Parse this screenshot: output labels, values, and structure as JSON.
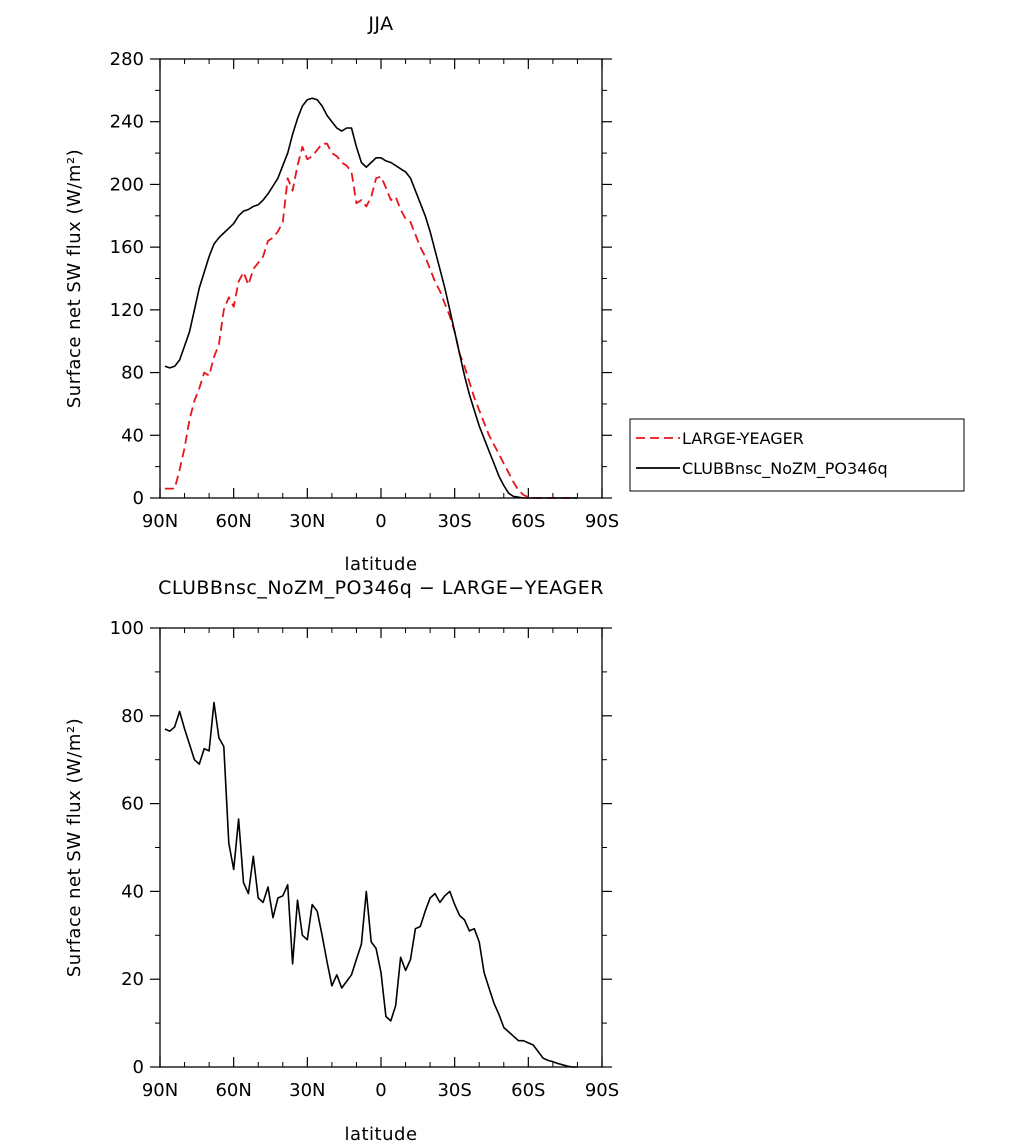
{
  "chart_data": [
    {
      "type": "line",
      "title": "JJA",
      "xlabel": "latitude",
      "ylabel": "Surface net SW flux (W/m²)",
      "x_ticks": [
        "90N",
        "60N",
        "30N",
        "0",
        "30S",
        "60S",
        "90S"
      ],
      "x_tick_values": [
        90,
        60,
        30,
        0,
        -30,
        -60,
        -90
      ],
      "xlim": [
        90,
        -90
      ],
      "y_ticks": [
        "0",
        "40",
        "80",
        "120",
        "160",
        "200",
        "240",
        "280"
      ],
      "ylim": [
        0,
        280
      ],
      "legend_position": "right",
      "series": [
        {
          "name": "LARGE-YEAGER",
          "color": "#e8141b",
          "dash": "dashed",
          "x": [
            88,
            86,
            84,
            82,
            80,
            78,
            76,
            74,
            72,
            70,
            68,
            66,
            64,
            62,
            60,
            58,
            56,
            54,
            52,
            50,
            48,
            46,
            44,
            42,
            40,
            38,
            36,
            34,
            32,
            30,
            28,
            26,
            24,
            22,
            20,
            18,
            16,
            14,
            12,
            10,
            8,
            6,
            4,
            2,
            0,
            -2,
            -4,
            -6,
            -8,
            -10,
            -12,
            -14,
            -16,
            -18,
            -20,
            -22,
            -24,
            -26,
            -28,
            -30,
            -32,
            -34,
            -36,
            -38,
            -40,
            -42,
            -44,
            -46,
            -48,
            -50,
            -52,
            -54,
            -56,
            -58,
            -60,
            -62,
            -64,
            -66,
            -68,
            -70,
            -72,
            -74,
            -76,
            -78,
            -80
          ],
          "values": [
            6,
            6,
            6,
            18,
            32,
            50,
            62,
            70,
            80,
            78,
            90,
            98,
            120,
            128,
            122,
            138,
            144,
            136,
            146,
            150,
            154,
            164,
            166,
            170,
            176,
            204,
            196,
            212,
            224,
            216,
            218,
            222,
            226,
            226,
            220,
            218,
            214,
            212,
            208,
            188,
            190,
            186,
            192,
            204,
            205,
            198,
            190,
            192,
            184,
            178,
            176,
            168,
            160,
            154,
            146,
            138,
            132,
            124,
            116,
            106,
            92,
            84,
            74,
            64,
            56,
            48,
            40,
            34,
            28,
            22,
            16,
            10,
            5,
            2,
            0.5,
            0,
            0,
            0,
            0,
            0,
            0,
            0,
            0,
            0,
            0
          ]
        },
        {
          "name": "CLUBBnsc_NoZM_PO346q",
          "color": "#000000",
          "dash": "solid",
          "x": [
            88,
            86,
            84,
            82,
            80,
            78,
            76,
            74,
            72,
            70,
            68,
            66,
            64,
            62,
            60,
            58,
            56,
            54,
            52,
            50,
            48,
            46,
            44,
            42,
            40,
            38,
            36,
            34,
            32,
            30,
            28,
            26,
            24,
            22,
            20,
            18,
            16,
            14,
            12,
            10,
            8,
            6,
            4,
            2,
            0,
            -2,
            -4,
            -6,
            -8,
            -10,
            -12,
            -14,
            -16,
            -18,
            -20,
            -22,
            -24,
            -26,
            -28,
            -30,
            -32,
            -34,
            -36,
            -38,
            -40,
            -42,
            -44,
            -46,
            -48,
            -50,
            -52,
            -54,
            -56,
            -58,
            -60,
            -62,
            -64,
            -66,
            -68,
            -70,
            -72,
            -74,
            -76,
            -78,
            -80
          ],
          "values": [
            84,
            83,
            84,
            88,
            97,
            106,
            120,
            134,
            144,
            154,
            162,
            166,
            169,
            172,
            175,
            180,
            183,
            184,
            186,
            187,
            190,
            194,
            199,
            204,
            212,
            220,
            232,
            242,
            250,
            254,
            255,
            254,
            250,
            244,
            240,
            236,
            234,
            236,
            236,
            224,
            214,
            211,
            214,
            217,
            217,
            215,
            214,
            212,
            210,
            208,
            204,
            196,
            188,
            180,
            170,
            158,
            146,
            134,
            120,
            106,
            92,
            78,
            66,
            56,
            46,
            38,
            30,
            22,
            14,
            8,
            3,
            1,
            0.5,
            0,
            0,
            0,
            0,
            0,
            0,
            0,
            0,
            0,
            0,
            0,
            0
          ]
        }
      ]
    },
    {
      "type": "line",
      "title": "CLUBBnsc_NoZM_PO346q − LARGE−YEAGER",
      "xlabel": "latitude",
      "ylabel": "Surface net SW flux (W/m²)",
      "x_ticks": [
        "90N",
        "60N",
        "30N",
        "0",
        "30S",
        "60S",
        "90S"
      ],
      "x_tick_values": [
        90,
        60,
        30,
        0,
        -30,
        -60,
        -90
      ],
      "xlim": [
        90,
        -90
      ],
      "y_ticks": [
        "0",
        "20",
        "40",
        "60",
        "80",
        "100"
      ],
      "ylim": [
        0,
        100
      ],
      "series": [
        {
          "color": "#000000",
          "dash": "solid",
          "x": [
            88,
            86,
            84,
            82,
            80,
            78,
            76,
            74,
            72,
            70,
            68,
            66,
            64,
            62,
            60,
            58,
            56,
            54,
            52,
            50,
            48,
            46,
            44,
            42,
            40,
            38,
            36,
            34,
            32,
            30,
            28,
            26,
            24,
            22,
            20,
            18,
            16,
            14,
            12,
            10,
            8,
            6,
            4,
            2,
            0,
            -2,
            -4,
            -6,
            -8,
            -10,
            -12,
            -14,
            -16,
            -18,
            -20,
            -22,
            -24,
            -26,
            -28,
            -30,
            -32,
            -34,
            -36,
            -38,
            -40,
            -42,
            -44,
            -46,
            -48,
            -50,
            -52,
            -54,
            -56,
            -58,
            -60,
            -62,
            -64,
            -66,
            -68,
            -70,
            -72,
            -74,
            -76,
            -78,
            -80
          ],
          "values": [
            77,
            76.5,
            77.5,
            81,
            77,
            73.5,
            70,
            69,
            72.5,
            72,
            83,
            75,
            73,
            51,
            45,
            56.5,
            42,
            39.5,
            48,
            38.5,
            37.5,
            41,
            34,
            38.5,
            39,
            41.5,
            23.5,
            38,
            30,
            29,
            37,
            35.5,
            30,
            24,
            18.5,
            21,
            18,
            19.5,
            21,
            24.5,
            28,
            40,
            28.5,
            27,
            21.5,
            11.5,
            10.5,
            14,
            25,
            22,
            24.5,
            31.5,
            32,
            35.5,
            38.5,
            39.5,
            37.5,
            39,
            40,
            37,
            34.5,
            33.5,
            31,
            31.5,
            28.5,
            21.5,
            18,
            14.5,
            12,
            9,
            8,
            7,
            6,
            6,
            5.5,
            5,
            3.5,
            2,
            1.5,
            1.2,
            0.8,
            0.5,
            0.2,
            0,
            0
          ]
        }
      ]
    }
  ]
}
